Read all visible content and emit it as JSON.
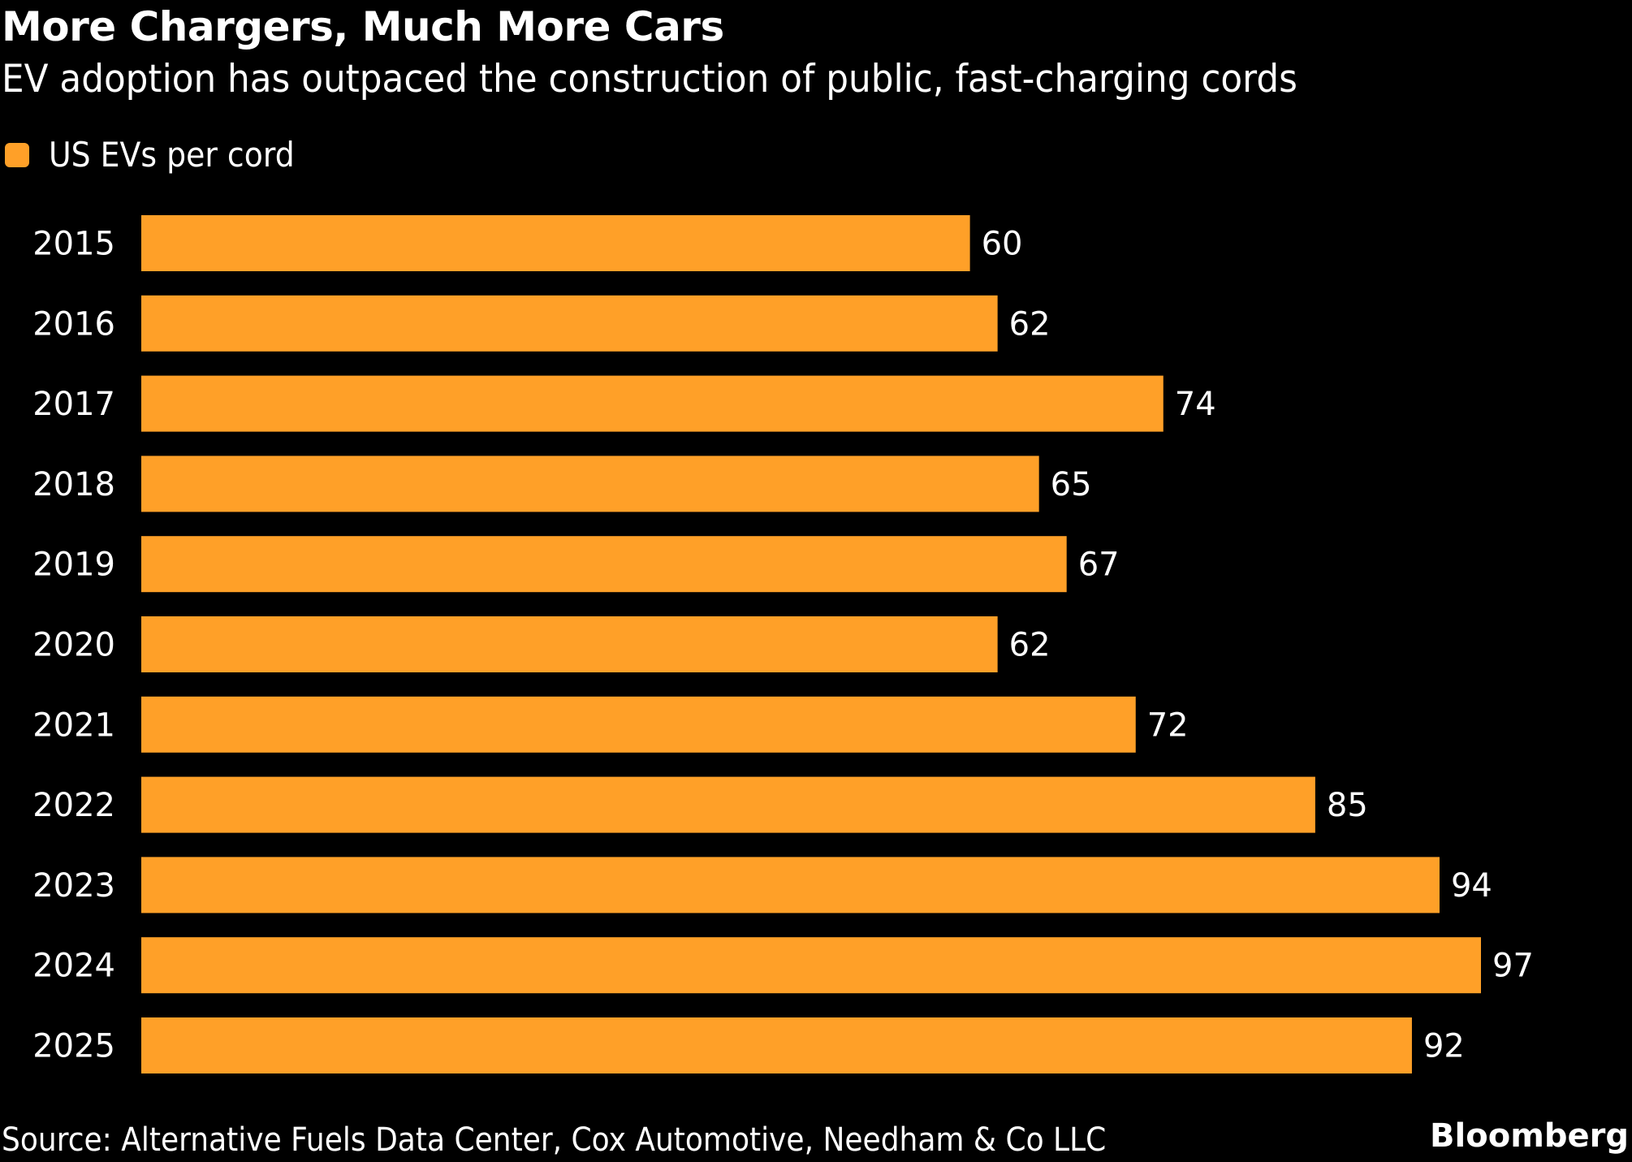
{
  "chart_data": {
    "type": "bar",
    "orientation": "horizontal",
    "title": "More Chargers, Much More Cars",
    "subtitle": "EV adoption has outpaced the construction of public, fast-charging cords",
    "categories": [
      "2015",
      "2016",
      "2017",
      "2018",
      "2019",
      "2020",
      "2021",
      "2022",
      "2023",
      "2024",
      "2025"
    ],
    "series": [
      {
        "name": "US EVs per cord",
        "color": "#FFA028",
        "values": [
          60,
          62,
          74,
          65,
          67,
          62,
          72,
          85,
          94,
          97,
          92
        ]
      }
    ],
    "data_labels": true,
    "xlabel": "",
    "ylabel": "",
    "xlim": [
      0,
      97
    ],
    "grid": false,
    "legend": "top-left",
    "source": "Source: Alternative Fuels Data Center, Cox Automotive, Needham & Co LLC",
    "brand": "Bloomberg"
  }
}
